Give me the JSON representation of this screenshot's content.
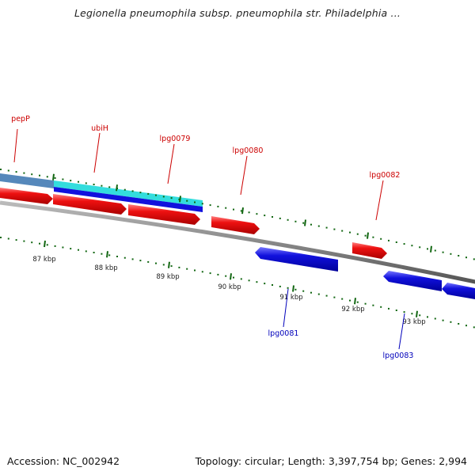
{
  "title": "Legionella pneumophila subsp. pneumophila str. Philadelphia ...",
  "footer": {
    "accession": "Accession: NC_002942",
    "summary": "Topology: circular; Length: 3,397,754 bp; Genes: 2,994"
  },
  "colors": {
    "forward_gene": "#ee1111",
    "reverse_gene": "#1111dd",
    "forward_label": "#cc0000",
    "reverse_label": "#0000bb",
    "tick": "#116611",
    "backbone": "#888888",
    "highlight_cyan": "#33dddd",
    "highlight_steel": "#5588bb"
  },
  "scale": {
    "unit": "kbp",
    "ticks": [
      "87 kbp",
      "88 kbp",
      "89 kbp",
      "90 kbp",
      "91 kbp",
      "92 kbp",
      "93 kbp"
    ]
  },
  "genes_forward": [
    "pepP",
    "ubiH",
    "lpg0079",
    "lpg0080",
    "lpg0082"
  ],
  "genes_reverse": [
    "lpg0081",
    "lpg0083"
  ]
}
